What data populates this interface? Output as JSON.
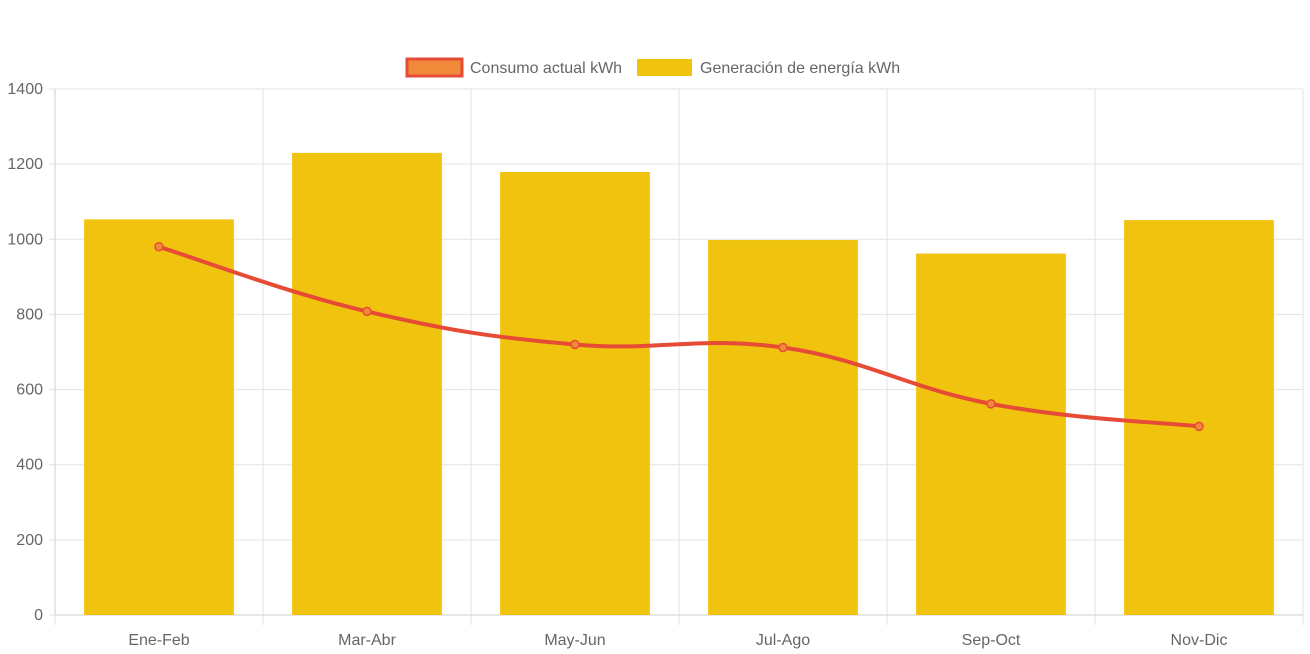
{
  "chart_data": {
    "type": "bar",
    "categories": [
      "Ene-Feb",
      "Mar-Abr",
      "May-Jun",
      "Jul-Ago",
      "Sep-Oct",
      "Nov-Dic"
    ],
    "series": [
      {
        "name": "Consumo actual kWh",
        "type": "line",
        "values": [
          980,
          808,
          720,
          712,
          562,
          502
        ],
        "color": "#e64b35",
        "point_fill": "#f08a3a"
      },
      {
        "name": "Generación de energía kWh",
        "type": "bar",
        "values": [
          1053,
          1230,
          1179,
          998,
          962,
          1051
        ],
        "color": "#f0c30f"
      }
    ],
    "title": "",
    "xlabel": "",
    "ylabel": "",
    "ylim": [
      0,
      1400
    ],
    "y_ticks": [
      0,
      200,
      400,
      600,
      800,
      1000,
      1200,
      1400
    ],
    "grid": true,
    "legend_position": "top"
  }
}
